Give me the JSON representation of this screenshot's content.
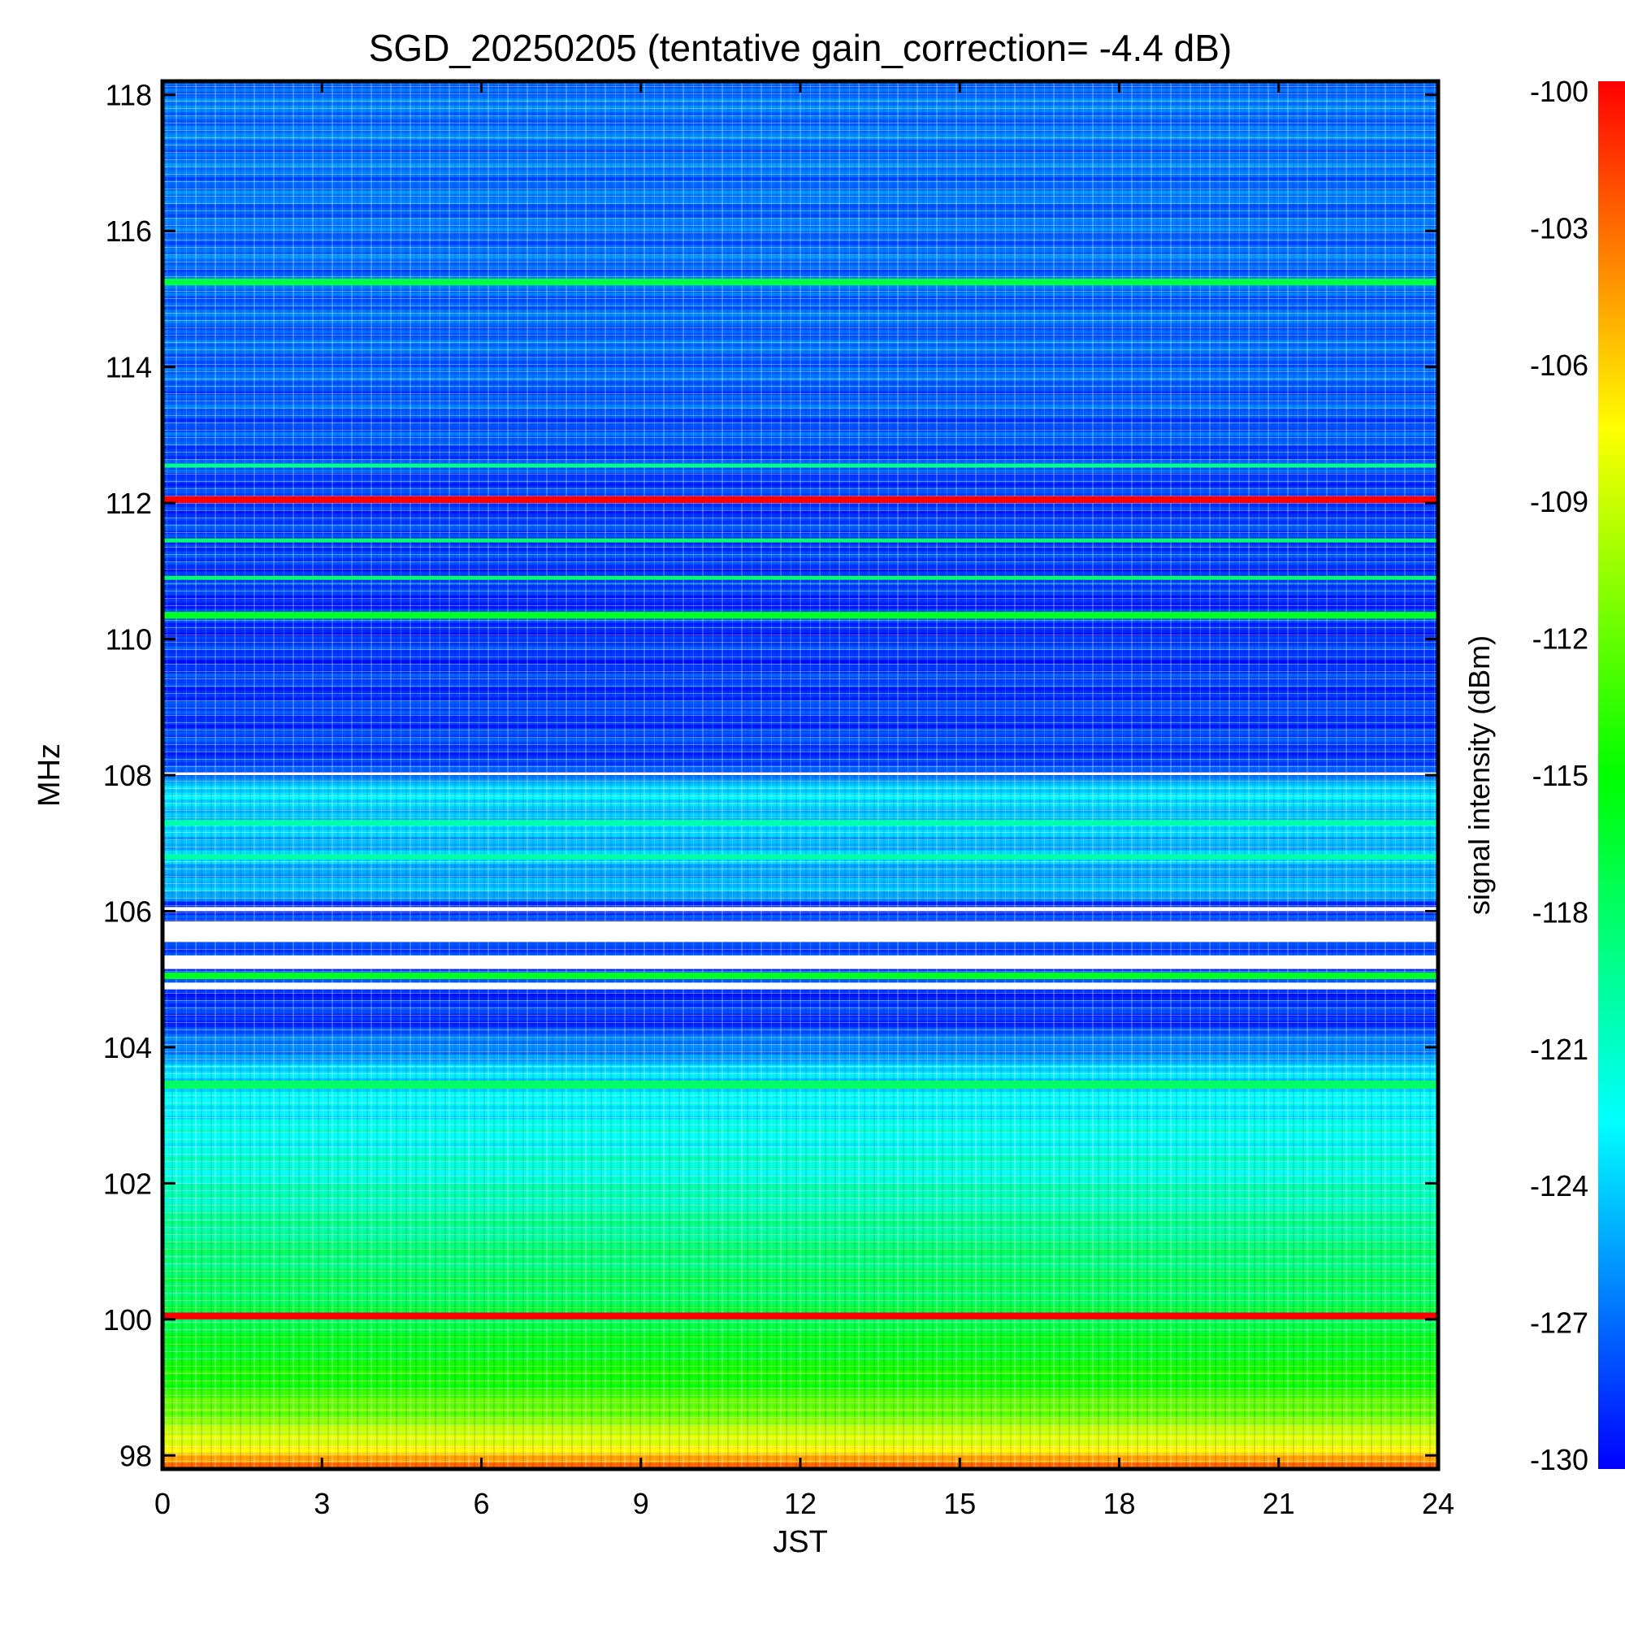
{
  "chart_data": {
    "type": "heatmap",
    "title": "SGD_20250205 (tentative gain_correction= -4.4 dB)",
    "xlabel": "JST",
    "ylabel": "MHz",
    "colorbar_label": "signal intensity (dBm)",
    "xlim": [
      0,
      24
    ],
    "ylim": [
      97.8,
      118.2
    ],
    "x_ticks": [
      "0",
      "3",
      "6",
      "9",
      "12",
      "15",
      "18",
      "21",
      "24"
    ],
    "y_ticks": [
      "118",
      "116",
      "114",
      "112",
      "110",
      "108",
      "106",
      "104",
      "102",
      "100",
      "98"
    ],
    "color_range": [
      -130,
      -100
    ],
    "colorbar_ticks": [
      "-100",
      "-103",
      "-106",
      "-109",
      "-112",
      "-115",
      "-118",
      "-121",
      "-124",
      "-127",
      "-130"
    ],
    "colormap": [
      "#0000ff",
      "#00ffff",
      "#00ff00",
      "#ffff00",
      "#ff0000"
    ],
    "background_profile": [
      {
        "freq": 97.8,
        "dbm": -102.5
      },
      {
        "freq": 98.0,
        "dbm": -106
      },
      {
        "freq": 98.4,
        "dbm": -110
      },
      {
        "freq": 99.0,
        "dbm": -114
      },
      {
        "freq": 100.0,
        "dbm": -117
      },
      {
        "freq": 101.0,
        "dbm": -118.5
      },
      {
        "freq": 102.0,
        "dbm": -121
      },
      {
        "freq": 103.0,
        "dbm": -122.5
      },
      {
        "freq": 103.6,
        "dbm": -123.5
      },
      {
        "freq": 104.4,
        "dbm": -128.5
      },
      {
        "freq": 106.1,
        "dbm": -128.5
      },
      {
        "freq": 106.2,
        "dbm": -125
      },
      {
        "freq": 107.9,
        "dbm": -123.5
      },
      {
        "freq": 108.0,
        "dbm": -128
      },
      {
        "freq": 110.5,
        "dbm": -128.5
      },
      {
        "freq": 112.2,
        "dbm": -128
      },
      {
        "freq": 114.0,
        "dbm": -127
      },
      {
        "freq": 118.2,
        "dbm": -126.5
      }
    ],
    "bands": [
      {
        "freq": 100.05,
        "dbm": -100,
        "width_mhz": 0.1
      },
      {
        "freq": 103.45,
        "dbm": -118,
        "width_mhz": 0.12
      },
      {
        "freq": 105.05,
        "dbm": -116,
        "width_mhz": 0.1
      },
      {
        "freq": 106.8,
        "dbm": -120,
        "width_mhz": 0.08
      },
      {
        "freq": 107.3,
        "dbm": -120,
        "width_mhz": 0.08
      },
      {
        "freq": 110.35,
        "dbm": -116,
        "width_mhz": 0.1
      },
      {
        "freq": 110.9,
        "dbm": -118,
        "width_mhz": 0.06
      },
      {
        "freq": 111.45,
        "dbm": -118,
        "width_mhz": 0.06
      },
      {
        "freq": 112.05,
        "dbm": -100,
        "width_mhz": 0.1
      },
      {
        "freq": 112.55,
        "dbm": -119,
        "width_mhz": 0.06
      },
      {
        "freq": 115.25,
        "dbm": -117,
        "width_mhz": 0.1
      }
    ],
    "no_data_bands": [
      {
        "freq_low": 105.15,
        "freq_high": 105.35
      },
      {
        "freq_low": 105.55,
        "freq_high": 105.85
      },
      {
        "freq_low": 104.85,
        "freq_high": 104.95
      },
      {
        "freq_low": 106.0,
        "freq_high": 106.06
      },
      {
        "freq_low": 108.0,
        "freq_high": 108.04
      }
    ]
  }
}
